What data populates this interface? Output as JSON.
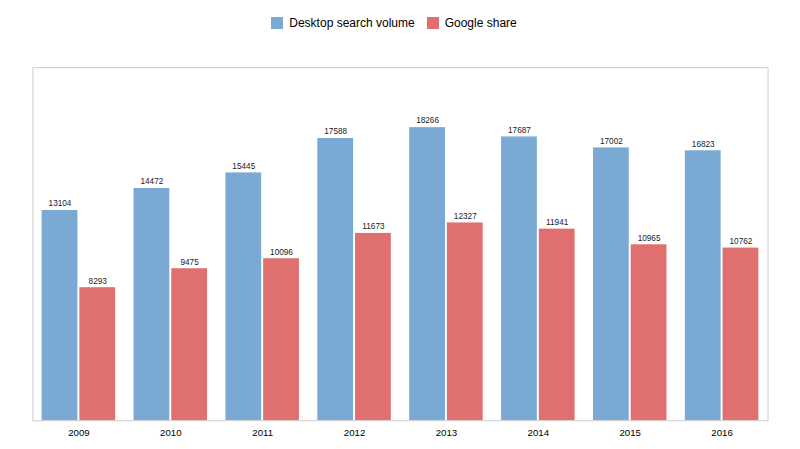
{
  "chart_data": {
    "type": "bar",
    "categories": [
      "2009",
      "2010",
      "2011",
      "2012",
      "2013",
      "2014",
      "2015",
      "2016"
    ],
    "series": [
      {
        "name": "Desktop search volume",
        "color": "#7aaad4",
        "values": [
          13104,
          14472,
          15445,
          17588,
          18266,
          17687,
          17002,
          16823
        ]
      },
      {
        "name": "Google share",
        "color": "#e07070",
        "values": [
          8293,
          9475,
          10096,
          11673,
          12327,
          11941,
          10965,
          10762
        ]
      }
    ],
    "ylim": [
      0,
      22000
    ],
    "data_labels": true,
    "tick_labels": "x",
    "legend": "top",
    "grid": false
  }
}
